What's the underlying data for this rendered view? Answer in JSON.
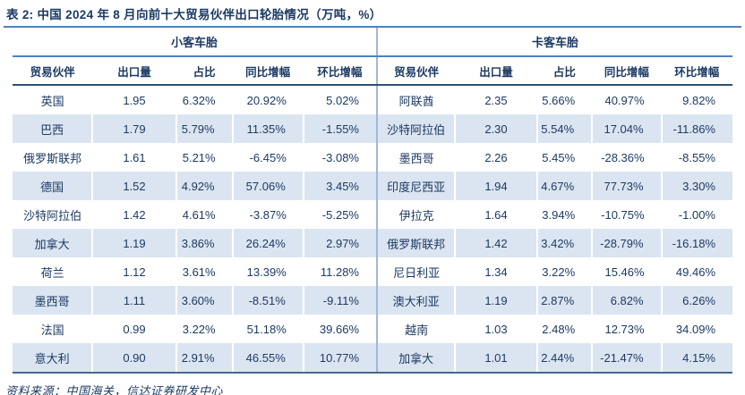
{
  "title": "表 2: 中国 2024 年 8 月向前十大贸易伙伴出口轮胎情况（万吨，%）",
  "source": "资料来源：中国海关，信达证券研发中心",
  "colors": {
    "text_navy": "#1c3a63",
    "row_stripe": "#dbe5f1",
    "rule_medium_blue": "#4f81bd",
    "rule_dark": "#2e5070",
    "table_divider": "#9fb9da"
  },
  "sections": [
    {
      "group": "小客车胎",
      "headers": [
        "贸易伙伴",
        "出口量",
        "占比",
        "同比增幅",
        "环比增幅"
      ],
      "rows": [
        [
          "英国",
          "1.95",
          "6.32%",
          "20.92%",
          "5.02%"
        ],
        [
          "巴西",
          "1.79",
          "5.79%",
          "11.35%",
          "-1.55%"
        ],
        [
          "俄罗斯联邦",
          "1.61",
          "5.21%",
          "-6.45%",
          "-3.08%"
        ],
        [
          "德国",
          "1.52",
          "4.92%",
          "57.06%",
          "3.45%"
        ],
        [
          "沙特阿拉伯",
          "1.42",
          "4.61%",
          "-3.87%",
          "-5.25%"
        ],
        [
          "加拿大",
          "1.19",
          "3.86%",
          "26.24%",
          "2.97%"
        ],
        [
          "荷兰",
          "1.12",
          "3.61%",
          "13.39%",
          "11.28%"
        ],
        [
          "墨西哥",
          "1.11",
          "3.60%",
          "-8.51%",
          "-9.11%"
        ],
        [
          "法国",
          "0.99",
          "3.22%",
          "51.18%",
          "39.66%"
        ],
        [
          "意大利",
          "0.90",
          "2.91%",
          "46.55%",
          "10.77%"
        ]
      ]
    },
    {
      "group": "卡客车胎",
      "headers": [
        "贸易伙伴",
        "出口量",
        "占比",
        "同比增幅",
        "环比增幅"
      ],
      "rows": [
        [
          "阿联酋",
          "2.35",
          "5.66%",
          "40.97%",
          "9.82%"
        ],
        [
          "沙特阿拉伯",
          "2.30",
          "5.54%",
          "17.04%",
          "-11.86%"
        ],
        [
          "墨西哥",
          "2.26",
          "5.45%",
          "-28.36%",
          "-8.55%"
        ],
        [
          "印度尼西亚",
          "1.94",
          "4.67%",
          "77.73%",
          "3.30%"
        ],
        [
          "伊拉克",
          "1.64",
          "3.94%",
          "-10.75%",
          "-1.00%"
        ],
        [
          "俄罗斯联邦",
          "1.42",
          "3.42%",
          "-28.79%",
          "-16.18%"
        ],
        [
          "尼日利亚",
          "1.34",
          "3.22%",
          "15.46%",
          "49.46%"
        ],
        [
          "澳大利亚",
          "1.19",
          "2.87%",
          "6.82%",
          "6.26%"
        ],
        [
          "越南",
          "1.03",
          "2.48%",
          "12.73%",
          "34.09%"
        ],
        [
          "加拿大",
          "1.01",
          "2.44%",
          "-21.47%",
          "4.15%"
        ]
      ]
    }
  ]
}
